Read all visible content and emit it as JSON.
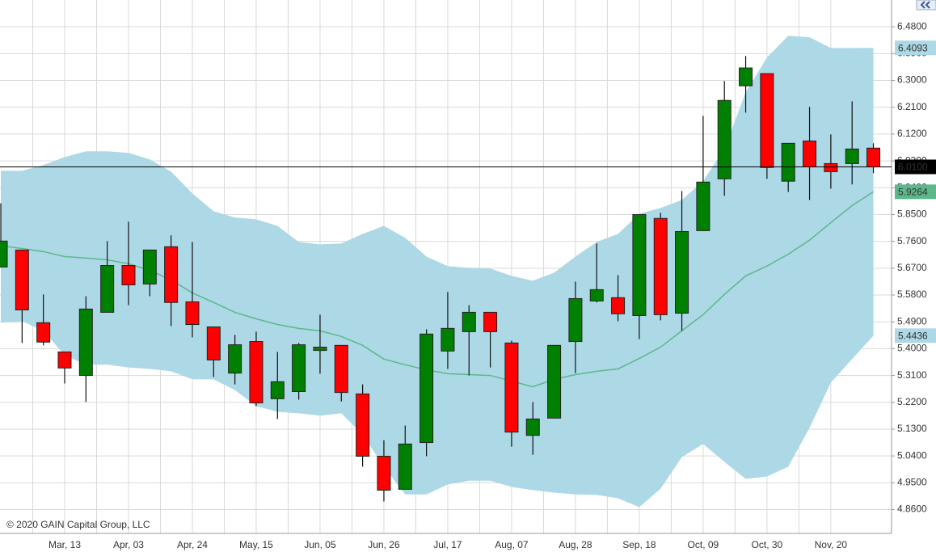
{
  "chart_data": {
    "type": "candlestick",
    "copyright": "© 2020 GAIN Capital Group, LLC",
    "categories": [
      null,
      null,
      null,
      "Mar, 13",
      null,
      null,
      "Apr, 03",
      null,
      null,
      "Apr, 24",
      null,
      null,
      "May, 15",
      null,
      null,
      "Jun, 05",
      null,
      null,
      "Jun, 26",
      null,
      null,
      "Jul, 17",
      null,
      null,
      "Aug, 07",
      null,
      null,
      "Aug, 28",
      null,
      null,
      "Sep, 18",
      null,
      null,
      "Oct, 09",
      null,
      null,
      "Oct, 30",
      null,
      null,
      "Nov, 20",
      null,
      null
    ],
    "open": [
      5.674,
      5.731,
      5.487,
      5.389,
      5.31,
      5.522,
      5.679,
      5.617,
      5.742,
      5.557,
      5.473,
      5.318,
      5.424,
      5.232,
      5.256,
      5.394,
      5.411,
      5.248,
      5.039,
      4.928,
      5.085,
      5.392,
      5.457,
      5.522,
      5.419,
      5.109,
      5.167,
      5.424,
      5.56,
      5.571,
      5.511,
      5.837,
      5.519,
      5.796,
      5.97,
      6.282,
      6.323,
      5.962,
      6.097,
      6.021,
      6.021,
      6.073
    ],
    "high": [
      5.888,
      5.731,
      5.582,
      5.389,
      5.576,
      5.761,
      5.826,
      5.731,
      5.78,
      5.758,
      5.473,
      5.446,
      5.457,
      5.389,
      5.419,
      5.514,
      5.411,
      5.28,
      5.093,
      5.142,
      5.465,
      5.59,
      5.546,
      5.522,
      5.427,
      5.221,
      5.411,
      5.625,
      5.753,
      5.647,
      5.85,
      5.856,
      5.929,
      6.181,
      6.298,
      6.382,
      6.323,
      6.089,
      6.211,
      6.119,
      6.23,
      6.089
    ],
    "low": [
      5.674,
      5.419,
      5.411,
      5.283,
      5.221,
      5.522,
      5.546,
      5.576,
      5.476,
      5.438,
      5.305,
      5.28,
      5.207,
      5.164,
      5.229,
      5.316,
      5.223,
      5.004,
      4.887,
      4.928,
      5.039,
      5.332,
      5.31,
      5.337,
      5.071,
      5.044,
      5.167,
      5.318,
      5.555,
      5.492,
      5.432,
      5.495,
      5.46,
      5.796,
      5.913,
      6.192,
      5.97,
      5.926,
      5.899,
      5.937,
      5.951,
      5.989
    ],
    "close": [
      5.761,
      5.53,
      5.422,
      5.335,
      5.533,
      5.679,
      5.614,
      5.731,
      5.555,
      5.481,
      5.362,
      5.413,
      5.218,
      5.289,
      5.413,
      5.405,
      5.253,
      5.039,
      4.925,
      5.08,
      5.449,
      5.468,
      5.522,
      5.457,
      5.12,
      5.164,
      5.411,
      5.568,
      5.598,
      5.517,
      5.85,
      5.514,
      5.793,
      5.959,
      6.233,
      6.342,
      6.008,
      6.089,
      6.01,
      5.994,
      6.07,
      6.01
    ],
    "up_color": "#008000",
    "down_color": "#ff0000",
    "bands": {
      "upper": [
        5.997,
        5.997,
        6.016,
        6.043,
        6.062,
        6.062,
        6.057,
        6.035,
        5.994,
        5.921,
        5.861,
        5.84,
        5.834,
        5.812,
        5.758,
        5.75,
        5.753,
        5.785,
        5.812,
        5.772,
        5.709,
        5.677,
        5.671,
        5.669,
        5.644,
        5.628,
        5.655,
        5.709,
        5.758,
        5.785,
        5.853,
        5.872,
        5.899,
        5.962,
        6.07,
        6.26,
        6.377,
        6.45,
        6.445,
        6.409,
        6.409,
        6.4093
      ],
      "middle": [
        5.745,
        5.736,
        5.726,
        5.709,
        5.704,
        5.698,
        5.685,
        5.663,
        5.631,
        5.587,
        5.555,
        5.522,
        5.5,
        5.481,
        5.468,
        5.46,
        5.441,
        5.411,
        5.365,
        5.346,
        5.329,
        5.316,
        5.313,
        5.31,
        5.291,
        5.272,
        5.297,
        5.313,
        5.324,
        5.332,
        5.367,
        5.405,
        5.46,
        5.514,
        5.582,
        5.644,
        5.677,
        5.717,
        5.764,
        5.823,
        5.88,
        5.9264
      ],
      "lower": [
        5.487,
        5.492,
        5.46,
        5.378,
        5.346,
        5.346,
        5.337,
        5.332,
        5.324,
        5.297,
        5.297,
        5.261,
        5.207,
        5.188,
        5.183,
        5.175,
        5.183,
        5.112,
        5.004,
        4.911,
        4.911,
        4.944,
        4.957,
        4.957,
        4.936,
        4.925,
        4.917,
        4.911,
        4.909,
        4.898,
        4.868,
        4.93,
        5.036,
        5.08,
        5.02,
        4.963,
        4.971,
        5.004,
        5.134,
        5.286,
        5.365,
        5.4436
      ],
      "fill": "#add8e6",
      "line_color": "#5cb88a"
    },
    "last_price": {
      "value": 6.01,
      "label": "6.0100",
      "color": "#000000"
    },
    "price_markers": [
      {
        "value": 6.4093,
        "label": "6.4093",
        "color": "#add8e6",
        "text_color": "#ffffff"
      },
      {
        "value": 5.9264,
        "label": "5.9264",
        "color": "#5cb88a",
        "text_color": "#ffffff"
      },
      {
        "value": 5.4436,
        "label": "5.4436",
        "color": "#add8e6",
        "text_color": "#ffffff"
      }
    ],
    "ylim": [
      4.78,
      6.57
    ],
    "yticks": [
      {
        "value": 4.86,
        "label": "4.8600"
      },
      {
        "value": 4.95,
        "label": "4.9500"
      },
      {
        "value": 5.04,
        "label": "5.0400"
      },
      {
        "value": 5.13,
        "label": "5.1300"
      },
      {
        "value": 5.22,
        "label": "5.2200"
      },
      {
        "value": 5.31,
        "label": "5.3100"
      },
      {
        "value": 5.4,
        "label": "5.4000"
      },
      {
        "value": 5.49,
        "label": "5.4900"
      },
      {
        "value": 5.58,
        "label": "5.5800"
      },
      {
        "value": 5.67,
        "label": "5.6700"
      },
      {
        "value": 5.76,
        "label": "5.7600"
      },
      {
        "value": 5.85,
        "label": "5.8500"
      },
      {
        "value": 5.94,
        "label": "5.9400"
      },
      {
        "value": 6.03,
        "label": "6.0300"
      },
      {
        "value": 6.12,
        "label": "6.1200"
      },
      {
        "value": 6.21,
        "label": "6.2100"
      },
      {
        "value": 6.3,
        "label": "6.3000"
      },
      {
        "value": 6.39,
        "label": "6.3900"
      },
      {
        "value": 6.48,
        "label": "6.4800"
      }
    ],
    "grid": true
  }
}
